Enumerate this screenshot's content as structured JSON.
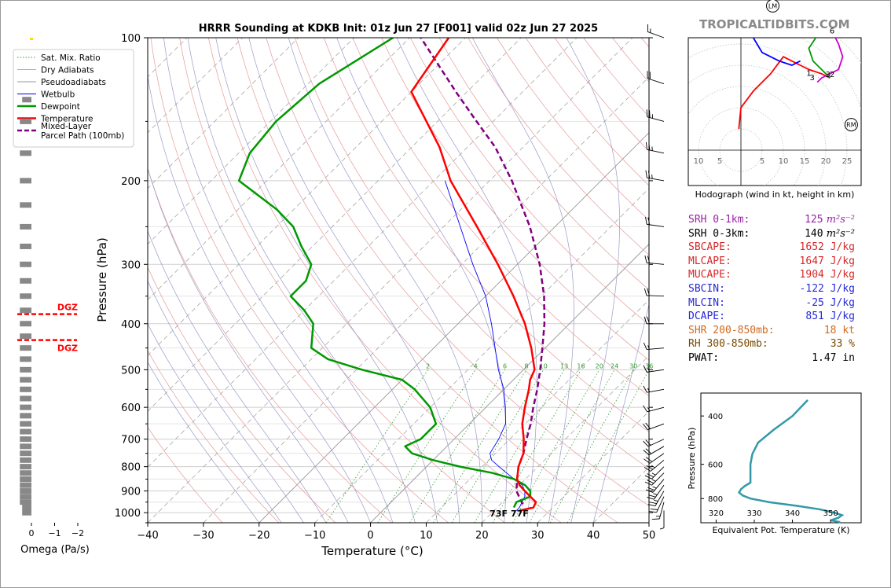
{
  "title": "HRRR Sounding at KDKB Init: 01z Jun 27 [F001] valid 02z Jun 27 2025",
  "brand": "TROPICALTIDBITS.COM",
  "colors": {
    "temperature": "#ff0000",
    "dewpoint": "#009900",
    "wetbulb": "#0000ff",
    "parcel": "#800080",
    "dry_adiabat": "#e59a9a",
    "moist_adiabat": "#9a9ac8",
    "mixing_ratio": "#339933",
    "isotherm": "#000000"
  },
  "chart_data": {
    "type": "line",
    "title": "HRRR Sounding at KDKB Init: 01z Jun 27 [F001] valid 02z Jun 27 2025",
    "xlabel": "Temperature (°C)",
    "ylabel": "Pressure (hPa)",
    "xlim": [
      -40,
      50
    ],
    "ylim": [
      1050,
      100
    ],
    "yscale": "log",
    "skew": true,
    "grid": true,
    "legend_position": "top-left",
    "x_ticks": [
      "−40",
      "−30",
      "−20",
      "−10",
      "0",
      "10",
      "20",
      "30",
      "40",
      "50"
    ],
    "y_ticks": [
      "100",
      "200",
      "300",
      "400",
      "500",
      "600",
      "700",
      "800",
      "900",
      "1000"
    ],
    "legend": [
      "Sat. Mix. Ratio",
      "Dry Adiabats",
      "Pseudoadiabats",
      "Wetbulb",
      "Dewpoint",
      "Temperature",
      "Mixed-Layer\nParcel Path (100mb)"
    ],
    "mixing_ratio_labels": [
      "2",
      "4",
      "6",
      "8",
      "10",
      "13",
      "16",
      "20",
      "24",
      "30",
      "36"
    ],
    "surface_temp_label": "77F",
    "surface_dewpoint_label": "73F",
    "series": [
      {
        "name": "Temperature",
        "p": [
          990,
          975,
          950,
          925,
          900,
          875,
          850,
          800,
          750,
          700,
          650,
          600,
          550,
          525,
          500,
          450,
          400,
          350,
          300,
          250,
          200,
          170,
          150,
          130,
          100
        ],
        "t": [
          24.5,
          26.5,
          26.0,
          24.0,
          22.0,
          20.0,
          18.5,
          16.5,
          15.0,
          12.5,
          9.5,
          7.0,
          4.5,
          3.0,
          2.0,
          -2.5,
          -8.0,
          -15.0,
          -23.5,
          -34.0,
          -47.0,
          -55.0,
          -62.0,
          -70.0,
          -73.0
        ]
      },
      {
        "name": "Dewpoint",
        "p": [
          975,
          950,
          925,
          900,
          875,
          850,
          825,
          800,
          775,
          750,
          725,
          700,
          650,
          600,
          550,
          525,
          500,
          475,
          450,
          400,
          375,
          350,
          325,
          300,
          275,
          250,
          230,
          200,
          175,
          150,
          125,
          100
        ],
        "t": [
          23.0,
          22.5,
          24.0,
          23.0,
          21.0,
          18.0,
          13.0,
          6.0,
          0.0,
          -5.0,
          -7.5,
          -6.0,
          -6.0,
          -10.0,
          -16.0,
          -20.0,
          -29.0,
          -37.0,
          -42.0,
          -46.0,
          -50.0,
          -55.0,
          -55.0,
          -57.0,
          -62.0,
          -67.0,
          -73.0,
          -85.0,
          -88.0,
          -89.0,
          -88.0,
          -83.0
        ]
      },
      {
        "name": "Wetbulb",
        "p": [
          990,
          975,
          950,
          925,
          900,
          875,
          850,
          825,
          800,
          775,
          750,
          700,
          650,
          600,
          550,
          500,
          450,
          400,
          350,
          300,
          250,
          200
        ],
        "t": [
          24.0,
          24.0,
          23.5,
          23.0,
          22.0,
          20.5,
          18.0,
          15.5,
          13.0,
          10.5,
          9.0,
          8.0,
          6.5,
          3.5,
          0.0,
          -4.5,
          -9.0,
          -14.0,
          -20.0,
          -28.0,
          -37.0,
          -48.0
        ]
      },
      {
        "name": "Mixed-Layer\nParcel Path (100mb)",
        "p": [
          960,
          900,
          850,
          800,
          750,
          700,
          650,
          600,
          550,
          500,
          450,
          400,
          350,
          300,
          250,
          200,
          170,
          150,
          130,
          100
        ],
        "t": [
          24.0,
          20.5,
          18.5,
          16.5,
          15.0,
          13.0,
          11.0,
          8.5,
          6.0,
          3.0,
          -0.5,
          -4.5,
          -9.5,
          -16.0,
          -24.5,
          -36.0,
          -45.0,
          -53.0,
          -62.0,
          -78.0
        ]
      }
    ],
    "wind_barbs": {
      "p": [
        990,
        950,
        925,
        900,
        875,
        850,
        825,
        800,
        775,
        750,
        725,
        700,
        650,
        600,
        550,
        500,
        450,
        400,
        350,
        300,
        250,
        200,
        175,
        150,
        125,
        100
      ],
      "dir": [
        180,
        195,
        205,
        210,
        215,
        220,
        225,
        225,
        230,
        235,
        240,
        245,
        250,
        255,
        260,
        262,
        265,
        270,
        272,
        275,
        278,
        280,
        282,
        285,
        288,
        290
      ],
      "speed_kt": [
        5,
        15,
        20,
        25,
        25,
        25,
        25,
        25,
        25,
        20,
        20,
        20,
        20,
        15,
        15,
        15,
        15,
        20,
        20,
        20,
        20,
        25,
        25,
        25,
        20,
        15
      ]
    },
    "dgz_labels": [
      "DGZ",
      "DGZ"
    ],
    "dgz_pressures": [
      382,
      433
    ],
    "omega": {
      "xlabel": "Omega (Pa/s)",
      "ticks": [
        "0",
        "−1",
        "−2"
      ],
      "p": [
        1000,
        975,
        950,
        925,
        900,
        875,
        850,
        825,
        800,
        775,
        750,
        725,
        700,
        675,
        650,
        625,
        600,
        575,
        550,
        525,
        500,
        475,
        450,
        425,
        400,
        375,
        350,
        325,
        300,
        275,
        250,
        225,
        200,
        175,
        150,
        135
      ],
      "omega": [
        -0.4,
        -0.4,
        -0.5,
        -0.5,
        -0.5,
        -0.5,
        -0.5,
        -0.5,
        -0.5,
        -0.5,
        -0.5,
        -0.5,
        -0.5,
        -0.5,
        -0.5,
        -0.5,
        -0.5,
        -0.5,
        -0.5,
        -0.5,
        -0.5,
        -0.5,
        -0.5,
        -0.5,
        -0.5,
        -0.5,
        -0.5,
        -0.5,
        -0.5,
        -0.5,
        -0.5,
        -0.5,
        -0.5,
        -0.5,
        -0.5,
        -0.4
      ]
    },
    "hodograph": {
      "xlabel": "Hodograph (wind in kt, height in km)",
      "x_ticks": [
        "10",
        "5",
        "5",
        "10",
        "15",
        "20",
        "25"
      ],
      "markers": [
        "LM",
        "RM"
      ],
      "height_labels": [
        "1",
        "3",
        "2",
        "3",
        "6"
      ],
      "segments": [
        {
          "color": "#ff0000",
          "u": [
            -0.5,
            0,
            3,
            7,
            10,
            12,
            14,
            16,
            19,
            21
          ],
          "v": [
            5,
            10,
            14,
            18,
            22,
            21,
            20,
            19,
            18,
            17
          ]
        },
        {
          "color": "#0000ff",
          "u": [
            14,
            12,
            9,
            5,
            2,
            4,
            6
          ],
          "v": [
            21,
            20,
            21,
            23,
            28,
            33,
            35
          ]
        },
        {
          "color": "#009900",
          "u": [
            21,
            19,
            17,
            16,
            18,
            21
          ],
          "v": [
            17,
            19,
            21,
            24,
            27,
            27
          ]
        },
        {
          "color": "#cc00cc",
          "u": [
            21,
            22,
            23,
            24,
            23,
            21,
            19,
            18
          ],
          "v": [
            27,
            27,
            25,
            22,
            19,
            18,
            17,
            16
          ]
        }
      ]
    },
    "theta_e": {
      "xlabel": "Equivalent Pot. Temperature (K)",
      "ylabel": "Pressure (hPa)",
      "x_ticks": [
        "320",
        "330",
        "340",
        "350"
      ],
      "y_ticks": [
        "400",
        "600",
        "800"
      ],
      "xlim": [
        316,
        358
      ],
      "ylim": [
        980,
        330
      ],
      "p": [
        975,
        960,
        940,
        920,
        900,
        875,
        850,
        825,
        800,
        780,
        760,
        740,
        720,
        700,
        650,
        600,
        550,
        500,
        450,
        400,
        350
      ],
      "theta_e": [
        352.5,
        350.0,
        352.0,
        353.0,
        351.0,
        347.0,
        341.0,
        334.0,
        329.0,
        327.0,
        326.0,
        326.5,
        327.5,
        329.0,
        329.0,
        329.0,
        329.5,
        331.0,
        335.0,
        340.0,
        344.0
      ]
    }
  },
  "indices": [
    {
      "label": "SRH 0-1km:",
      "value": "125",
      "unit": "m²s⁻²",
      "color": "#9a1fa8"
    },
    {
      "label": "SRH 0-3km:",
      "value": "140",
      "unit": "m²s⁻²",
      "color": "#000000"
    },
    {
      "label": "SBCAPE:",
      "value": "1652 J/kg",
      "unit": "",
      "color": "#d62728"
    },
    {
      "label": "MLCAPE:",
      "value": "1647 J/kg",
      "unit": "",
      "color": "#d62728"
    },
    {
      "label": "MUCAPE:",
      "value": "1904 J/kg",
      "unit": "",
      "color": "#d62728"
    },
    {
      "label": "SBCIN:",
      "value": "-122 J/kg",
      "unit": "",
      "color": "#2828d6"
    },
    {
      "label": "MLCIN:",
      "value": "-25 J/kg",
      "unit": "",
      "color": "#2828d6"
    },
    {
      "label": "DCAPE:",
      "value": "851 J/kg",
      "unit": "",
      "color": "#2828d6"
    },
    {
      "label": "SHR 200-850mb:",
      "value": "18 kt",
      "unit": "",
      "color": "#d2691e"
    },
    {
      "label": "RH 300-850mb:",
      "value": "33 %",
      "unit": "",
      "color": "#7a4a00"
    },
    {
      "label": "PWAT:",
      "value": "1.47 in",
      "unit": "",
      "color": "#000000"
    }
  ]
}
